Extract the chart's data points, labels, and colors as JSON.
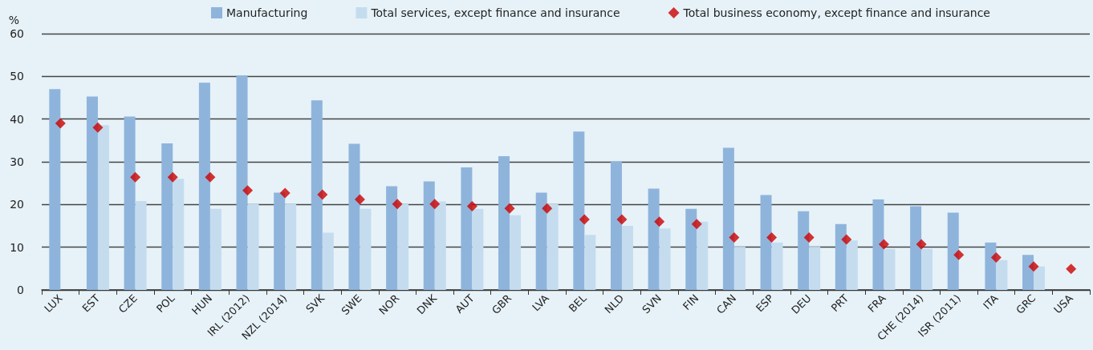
{
  "chart_data": {
    "type": "bar",
    "ylabel": "%",
    "categories": [
      "LUX",
      "EST",
      "CZE",
      "POL",
      "HUN",
      "IRL (2012)",
      "NZL (2014)",
      "SVK",
      "SWE",
      "NOR",
      "DNK",
      "AUT",
      "GBR",
      "LVA",
      "BEL",
      "NLD",
      "SVN",
      "FIN",
      "CAN",
      "ESP",
      "DEU",
      "PRT",
      "FRA",
      "CHE (2014)",
      "ISR (2011)",
      "ITA",
      "GRC",
      "USA"
    ],
    "series": [
      {
        "name": "Manufacturing",
        "color": "#8fb4dc",
        "values": [
          47,
          45.3,
          40.6,
          34.3,
          48.5,
          50.2,
          22.8,
          44.4,
          34.2,
          24.3,
          25.4,
          28.7,
          31.3,
          22.8,
          37.1,
          30.1,
          23.7,
          19,
          33.3,
          22.2,
          18.4,
          15.4,
          21.2,
          19.6,
          18.1,
          11.1,
          8.2,
          null
        ]
      },
      {
        "name": "Total services, except finance and insurance",
        "color": "#c5dcef",
        "values": [
          null,
          38.6,
          20.8,
          26,
          19,
          20.1,
          20.1,
          13.4,
          19,
          20.1,
          20.7,
          19,
          17.5,
          20.1,
          12.9,
          15,
          14.4,
          16,
          10.1,
          11.1,
          10.1,
          11.6,
          9.6,
          9.6,
          null,
          7,
          5.5,
          null
        ]
      },
      {
        "name": "Total business economy, except finance and insurance",
        "type": "scatter",
        "marker": "diamond",
        "color": "#cc0000",
        "values": [
          39,
          38,
          26.4,
          26.4,
          26.4,
          23.3,
          22.7,
          22.3,
          21.2,
          20.1,
          20.1,
          19.6,
          19.1,
          19.1,
          16.5,
          16.5,
          16,
          15.4,
          12.3,
          12.3,
          12.3,
          11.8,
          10.7,
          10.7,
          8.2,
          7.6,
          5.5,
          4.9
        ]
      }
    ],
    "ylim": [
      0,
      60
    ],
    "yticks": [
      0,
      10,
      20,
      30,
      40,
      50,
      60
    ],
    "grid": "y",
    "legend": "top"
  }
}
